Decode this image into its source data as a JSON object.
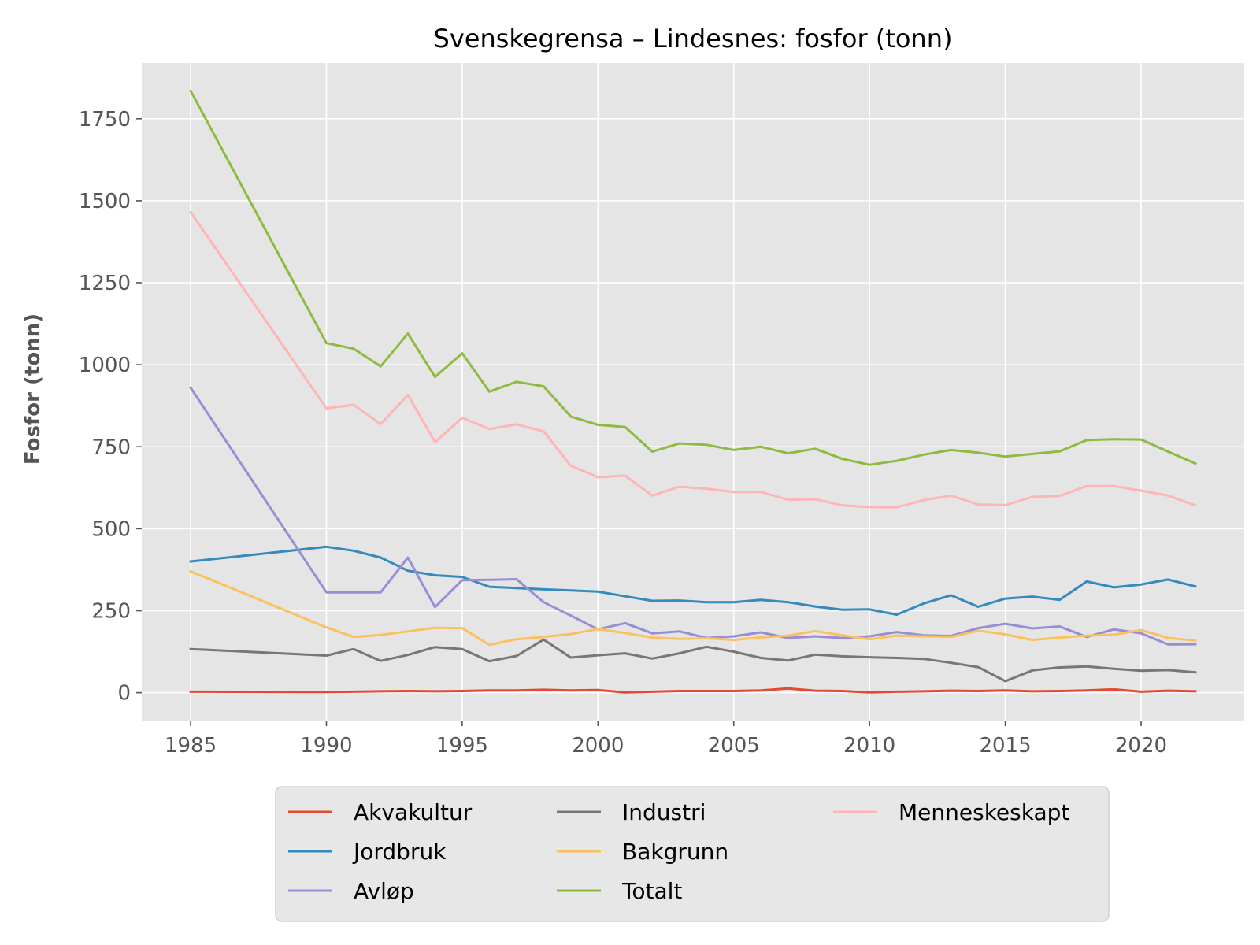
{
  "chart_data": {
    "type": "line",
    "title": "Svenskegrensa – Lindesnes: fosfor (tonn)",
    "xlabel": "",
    "ylabel": "Fosfor (tonn)",
    "xlim": [
      1983.2,
      2023.8
    ],
    "ylim": [
      -85,
      1920
    ],
    "xticks": [
      1985,
      1990,
      1995,
      2000,
      2005,
      2010,
      2015,
      2020
    ],
    "yticks": [
      0,
      250,
      500,
      750,
      1000,
      1250,
      1500,
      1750
    ],
    "grid": true,
    "legend_position": "bottom-center",
    "x": [
      1985,
      1990,
      1991,
      1992,
      1993,
      1994,
      1995,
      1996,
      1997,
      1998,
      1999,
      2000,
      2001,
      2002,
      2003,
      2004,
      2005,
      2006,
      2007,
      2008,
      2009,
      2010,
      2011,
      2012,
      2013,
      2014,
      2015,
      2016,
      2017,
      2018,
      2019,
      2020,
      2021,
      2022
    ],
    "series": [
      {
        "name": "Akvakultur",
        "color": "#E24A33",
        "values": [
          3,
          2,
          3,
          4,
          5,
          4,
          5,
          7,
          7,
          9,
          7,
          8,
          1,
          3,
          5,
          5,
          5,
          7,
          13,
          6,
          5,
          1,
          3,
          4,
          6,
          5,
          7,
          4,
          5,
          7,
          10,
          3,
          6,
          4
        ]
      },
      {
        "name": "Jordbruk",
        "color": "#348ABD",
        "values": [
          400,
          445,
          433,
          412,
          372,
          358,
          353,
          323,
          319,
          315,
          312,
          308,
          294,
          280,
          281,
          276,
          276,
          283,
          276,
          263,
          253,
          254,
          238,
          272,
          297,
          262,
          287,
          293,
          283,
          339,
          321,
          330,
          345,
          324
        ]
      },
      {
        "name": "Avløp",
        "color": "#988ED5",
        "values": [
          930,
          306,
          306,
          306,
          412,
          261,
          343,
          344,
          346,
          276,
          235,
          193,
          212,
          181,
          187,
          167,
          172,
          184,
          167,
          172,
          167,
          172,
          185,
          175,
          173,
          197,
          210,
          196,
          202,
          170,
          193,
          181,
          147,
          148
        ]
      },
      {
        "name": "Industri",
        "color": "#777777",
        "values": [
          133,
          113,
          133,
          97,
          115,
          139,
          133,
          96,
          112,
          162,
          107,
          114,
          120,
          104,
          120,
          140,
          125,
          106,
          98,
          116,
          111,
          108,
          106,
          103,
          91,
          78,
          35,
          68,
          77,
          80,
          73,
          67,
          69,
          62
        ]
      },
      {
        "name": "Bakgrunn",
        "color": "#FBC15E",
        "values": [
          370,
          199,
          170,
          176,
          187,
          198,
          197,
          146,
          163,
          170,
          179,
          194,
          182,
          168,
          164,
          166,
          161,
          169,
          174,
          188,
          175,
          163,
          174,
          172,
          170,
          189,
          178,
          161,
          168,
          174,
          177,
          191,
          167,
          159
        ]
      },
      {
        "name": "Totalt",
        "color": "#8EBA42",
        "values": [
          1835,
          1066,
          1049,
          995,
          1095,
          963,
          1035,
          918,
          948,
          934,
          842,
          817,
          810,
          735,
          760,
          756,
          740,
          750,
          730,
          744,
          713,
          695,
          707,
          726,
          740,
          732,
          720,
          728,
          736,
          770,
          773,
          772,
          735,
          699
        ]
      },
      {
        "name": "Menneskeskapt",
        "color": "#FFB5B8",
        "values": [
          1465,
          867,
          878,
          819,
          908,
          764,
          838,
          804,
          818,
          797,
          692,
          657,
          662,
          601,
          628,
          622,
          612,
          612,
          588,
          590,
          571,
          566,
          565,
          587,
          601,
          574,
          572,
          597,
          600,
          630,
          630,
          616,
          601,
          571
        ]
      }
    ]
  }
}
